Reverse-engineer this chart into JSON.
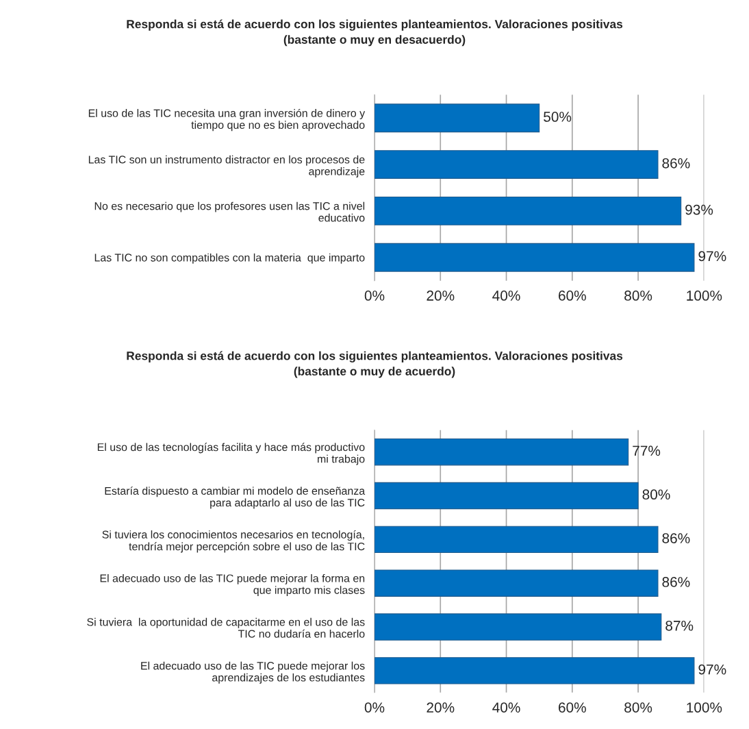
{
  "chart_data": [
    {
      "type": "bar",
      "orientation": "horizontal",
      "title": "Responda si está de acuerdo con los siguientes planteamientos. Valoraciones positivas\n(bastante o muy en desacuerdo)",
      "categories": [
        "El uso de las TIC necesita una gran inversión de dinero y\ntiempo que no es bien aprovechado",
        "Las TIC son un instrumento distractor en los procesos de\naprendizaje",
        "No es necesario que los profesores usen las TIC a nivel\neducativo",
        "Las TIC no son compatibles con la materia  que imparto"
      ],
      "values": [
        50,
        86,
        93,
        97
      ],
      "value_labels": [
        "50%",
        "86%",
        "93%",
        "97%"
      ],
      "color": "#0070c0",
      "xlim": [
        0,
        100
      ],
      "xticks": [
        {
          "value": 0,
          "label": "0%"
        },
        {
          "value": 20,
          "label": "20%"
        },
        {
          "value": 40,
          "label": "40%"
        },
        {
          "value": 60,
          "label": "60%"
        },
        {
          "value": 80,
          "label": "80%"
        },
        {
          "value": 100,
          "label": "100%"
        }
      ],
      "grid": "x"
    },
    {
      "type": "bar",
      "orientation": "horizontal",
      "title": "Responda si está de acuerdo con los siguientes planteamientos. Valoraciones positivas\n(bastante o muy de acuerdo)",
      "categories": [
        "El uso de las tecnologías facilita y hace más productivo\nmi trabajo",
        "Estaría dispuesto a cambiar mi modelo de enseñanza\npara adaptarlo al uso de las TIC",
        "Si tuviera los conocimientos necesarios en tecnología,\ntendría mejor percepción sobre el uso de las TIC",
        "El adecuado uso de las TIC puede mejorar la forma en\nque imparto mis clases",
        "Si tuviera  la oportunidad de capacitarme en el uso de las\nTIC no dudaría en hacerlo",
        "El adecuado uso de las TIC puede mejorar los\naprendizajes de los estudiantes"
      ],
      "values": [
        77,
        80,
        86,
        86,
        87,
        97
      ],
      "value_labels": [
        "77%",
        "80%",
        "86%",
        "86%",
        "87%",
        "97%"
      ],
      "color": "#0070c0",
      "xlim": [
        0,
        100
      ],
      "xticks": [
        {
          "value": 0,
          "label": "0%"
        },
        {
          "value": 20,
          "label": "20%"
        },
        {
          "value": 40,
          "label": "40%"
        },
        {
          "value": 60,
          "label": "60%"
        },
        {
          "value": 80,
          "label": "80%"
        },
        {
          "value": 100,
          "label": "100%"
        }
      ],
      "grid": "x"
    }
  ]
}
